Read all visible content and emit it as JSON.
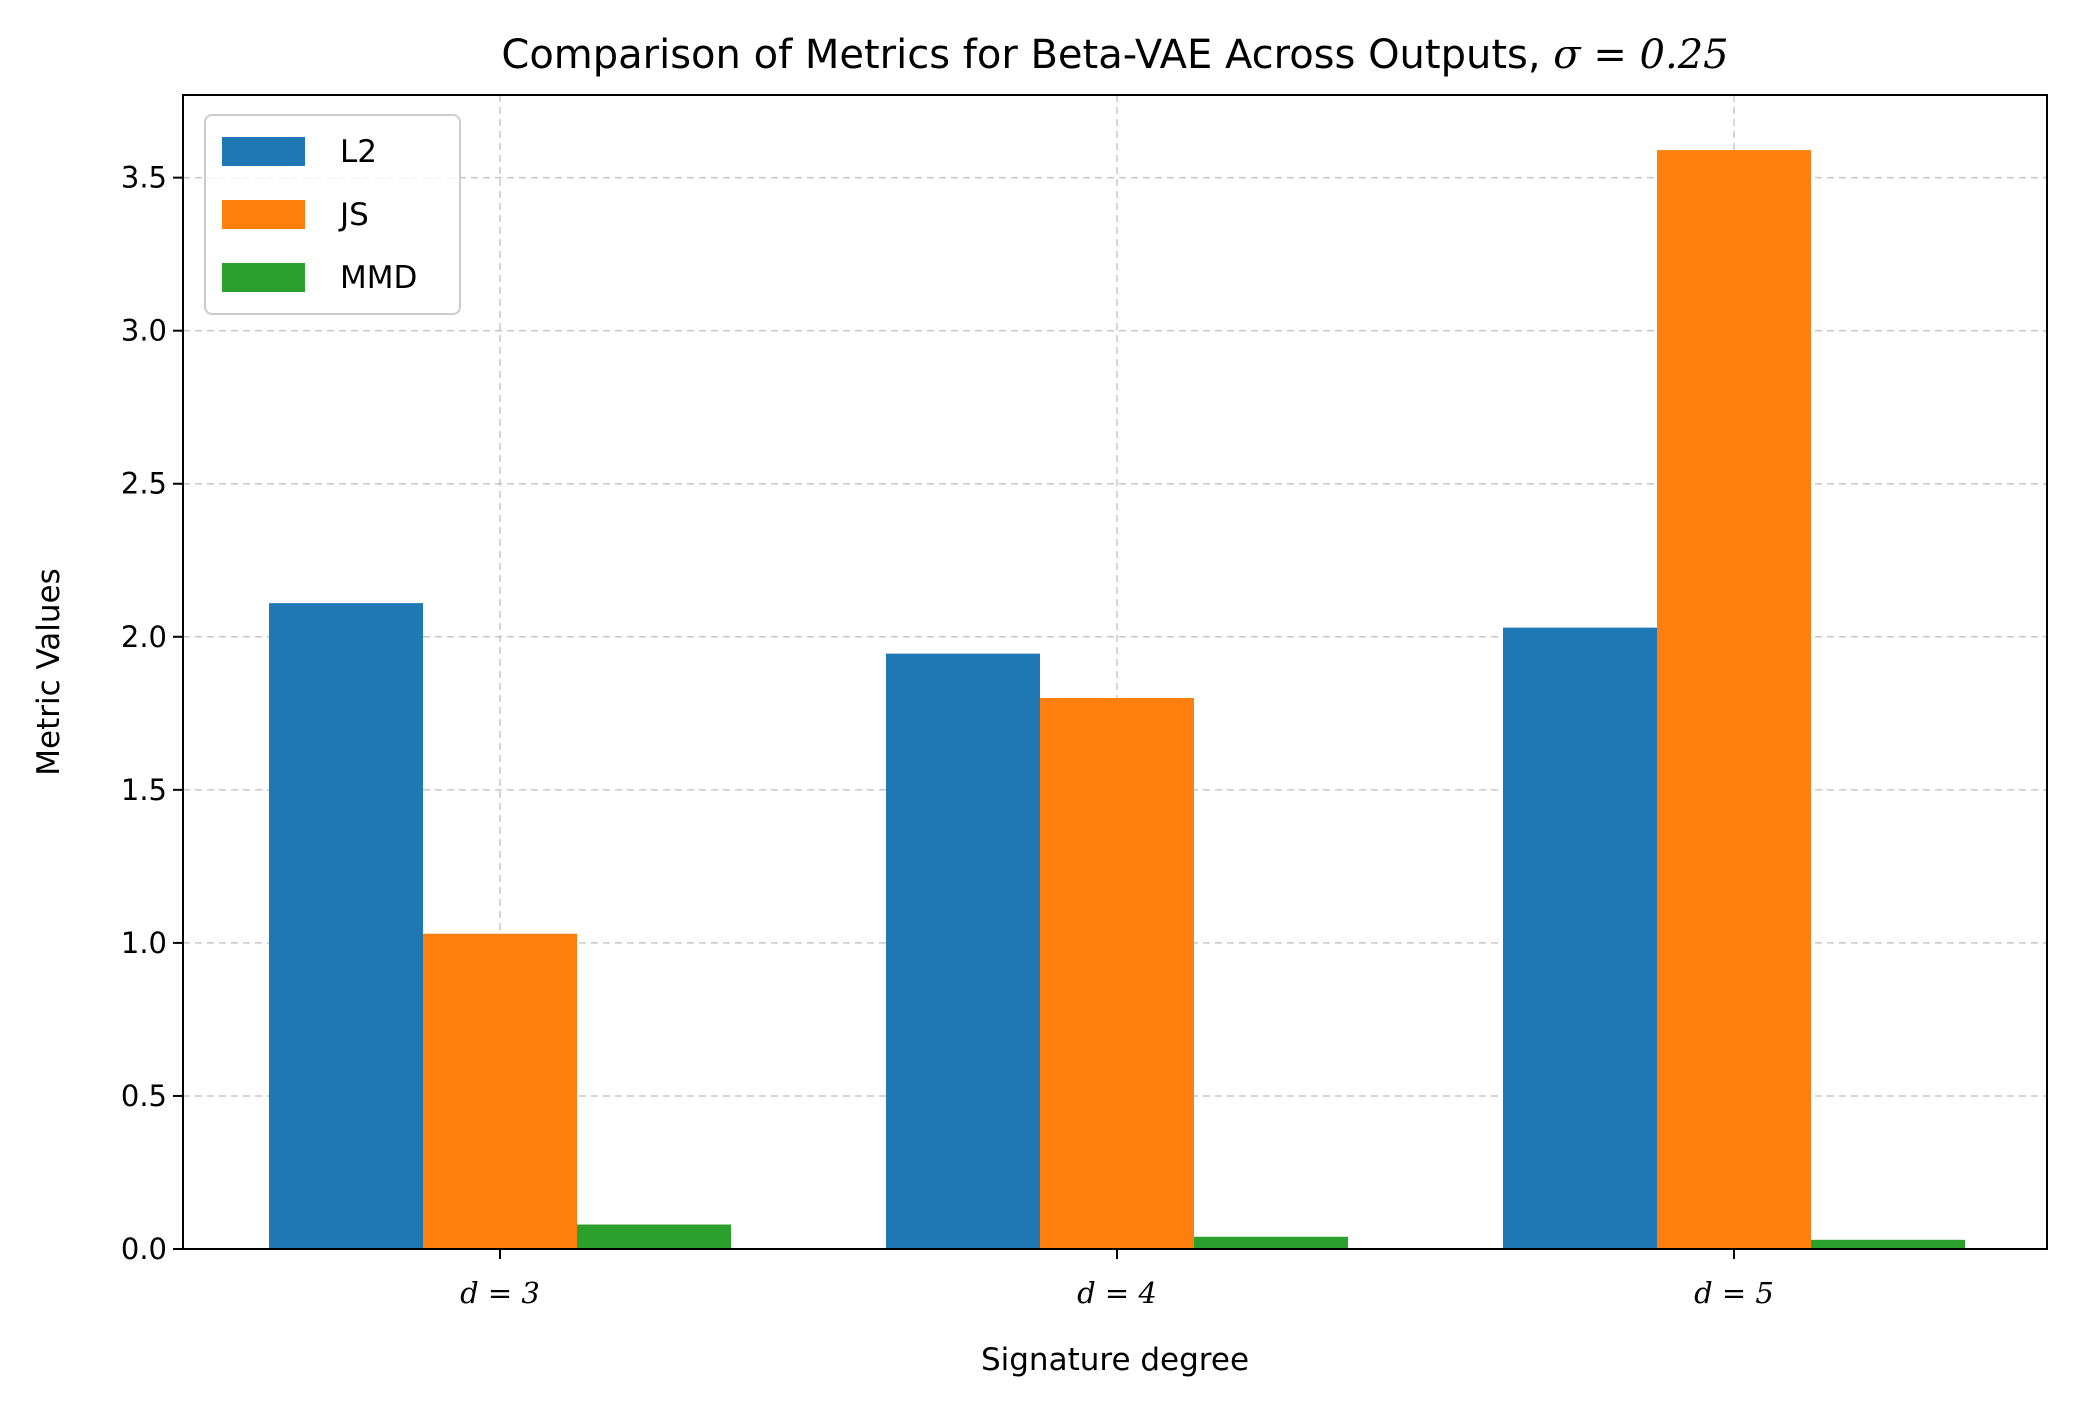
{
  "chart_data": {
    "type": "bar",
    "title_prefix": "Comparison of Metrics for Beta-VAE Across Outputs, ",
    "title_math": "σ = 0.25",
    "title": "Comparison of Metrics for Beta-VAE Across Outputs, σ = 0.25",
    "xlabel": "Signature degree",
    "ylabel": "Metric Values",
    "categories": [
      "d = 3",
      "d = 4",
      "d = 5"
    ],
    "series": [
      {
        "name": "L2",
        "color": "#1f77b4",
        "values": [
          2.11,
          1.945,
          2.03
        ]
      },
      {
        "name": "JS",
        "color": "#ff7f0e",
        "values": [
          1.03,
          1.8,
          3.59
        ]
      },
      {
        "name": "MMD",
        "color": "#2ca02c",
        "values": [
          0.08,
          0.04,
          0.03
        ]
      }
    ],
    "ylim": [
      0,
      3.77
    ],
    "yticks": [
      0.0,
      0.5,
      1.0,
      1.5,
      2.0,
      2.5,
      3.0,
      3.5
    ],
    "ytick_labels": [
      "0.0",
      "0.5",
      "1.0",
      "1.5",
      "2.0",
      "2.5",
      "3.0",
      "3.5"
    ],
    "grid": true,
    "legend_position": "top-left"
  }
}
